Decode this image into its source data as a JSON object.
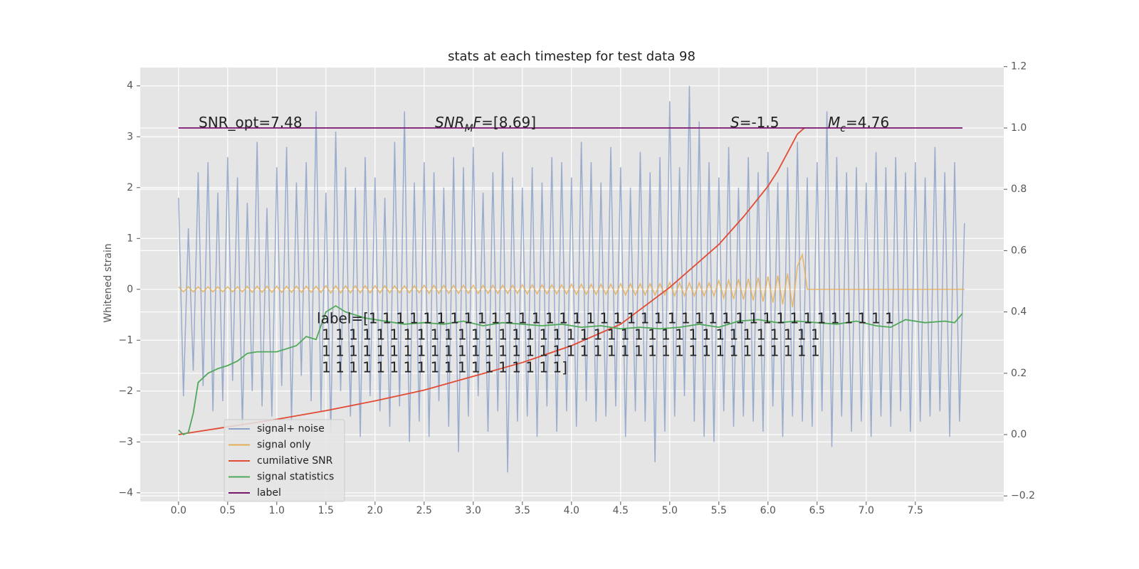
{
  "chart_data": {
    "type": "line",
    "title": "stats at each timestep for test data 98",
    "ylabel": "Whitened strain",
    "background": "#e5e5e5",
    "grid": true,
    "legend": "lower left",
    "xlim": [
      -0.39,
      8.4
    ],
    "ylim": [
      -4.17,
      4.36
    ],
    "y2lim": [
      -0.218,
      1.197
    ],
    "xticks": [
      {
        "value": 0,
        "label": "0.0"
      },
      0.5,
      {
        "value": 1,
        "label": "1.0"
      },
      1.5,
      {
        "value": 2,
        "label": "2.0"
      },
      2.5,
      {
        "value": 3,
        "label": "3.0"
      },
      3.5,
      {
        "value": 4,
        "label": "4.0"
      },
      4.5,
      {
        "value": 5,
        "label": "5.0"
      },
      5.5,
      {
        "value": 6,
        "label": "6.0"
      },
      6.5,
      {
        "value": 7,
        "label": "7.0"
      },
      7.5
    ],
    "yticks": [
      {
        "value": -4,
        "label": "−4"
      },
      {
        "value": -3,
        "label": "−3"
      },
      {
        "value": -2,
        "label": "−2"
      },
      {
        "value": -1,
        "label": "−1"
      },
      0,
      1,
      2,
      3,
      4
    ],
    "y2ticks": [
      {
        "value": -0.2,
        "label": "−0.2"
      },
      {
        "value": 0,
        "label": "0.0"
      },
      0.2,
      0.4,
      0.6,
      0.8,
      {
        "value": 1,
        "label": "1.0"
      },
      1.2
    ],
    "x": [
      0,
      0.05,
      0.1,
      0.15,
      0.2,
      0.25,
      0.3,
      0.35,
      0.4,
      0.45,
      0.5,
      0.55,
      0.6,
      0.65,
      0.7,
      0.75,
      0.8,
      0.85,
      0.9,
      0.95,
      1,
      1.05,
      1.1,
      1.15,
      1.2,
      1.25,
      1.3,
      1.35,
      1.4,
      1.45,
      1.5,
      1.55,
      1.6,
      1.65,
      1.7,
      1.75,
      1.8,
      1.85,
      1.9,
      1.95,
      2,
      2.05,
      2.1,
      2.15,
      2.2,
      2.25,
      2.3,
      2.35,
      2.4,
      2.45,
      2.5,
      2.55,
      2.6,
      2.65,
      2.7,
      2.75,
      2.8,
      2.85,
      2.9,
      2.95,
      3,
      3.05,
      3.1,
      3.15,
      3.2,
      3.25,
      3.3,
      3.35,
      3.4,
      3.45,
      3.5,
      3.55,
      3.6,
      3.65,
      3.7,
      3.75,
      3.8,
      3.85,
      3.9,
      3.95,
      4,
      4.05,
      4.1,
      4.15,
      4.2,
      4.25,
      4.3,
      4.35,
      4.4,
      4.45,
      4.5,
      4.55,
      4.6,
      4.65,
      4.7,
      4.75,
      4.8,
      4.85,
      4.9,
      4.95,
      5,
      5.05,
      5.1,
      5.15,
      5.2,
      5.25,
      5.3,
      5.35,
      5.4,
      5.45,
      5.5,
      5.55,
      5.6,
      5.65,
      5.7,
      5.75,
      5.8,
      5.85,
      5.9,
      5.95,
      6,
      6.05,
      6.1,
      6.15,
      6.2,
      6.25,
      6.3,
      6.35,
      6.4,
      6.45,
      6.5,
      6.55,
      6.6,
      6.65,
      6.7,
      6.75,
      6.8,
      6.85,
      6.9,
      6.95,
      7,
      7.05,
      7.1,
      7.15,
      7.2,
      7.25,
      7.3,
      7.35,
      7.4,
      7.45,
      7.5,
      7.55,
      7.6,
      7.65,
      7.7,
      7.75,
      7.8,
      7.85,
      7.9,
      7.95,
      8
    ],
    "series": [
      {
        "name": "signal+ noise",
        "color": "#8da2c9",
        "values": [
          1.8,
          -2.1,
          1.2,
          -1.6,
          2.3,
          -1.9,
          2.5,
          -2.4,
          1.9,
          -2.2,
          2.6,
          -1.8,
          2.2,
          -2.7,
          1.7,
          -2.0,
          2.9,
          -2.3,
          1.6,
          -2.5,
          2.4,
          -1.9,
          2.8,
          -2.6,
          2.1,
          -1.7,
          2.5,
          -2.2,
          3.5,
          -2.4,
          1.9,
          -2.8,
          3.1,
          -2.0,
          2.4,
          -2.5,
          2.0,
          -2.9,
          2.6,
          -2.1,
          2.2,
          -2.4,
          1.8,
          -2.7,
          2.9,
          -2.3,
          3.5,
          -3.0,
          2.1,
          -2.6,
          2.5,
          -2.9,
          2.3,
          -2.2,
          2.0,
          -2.7,
          2.6,
          -3.2,
          2.4,
          -2.5,
          2.8,
          -2.1,
          1.9,
          -2.8,
          2.3,
          -2.4,
          2.7,
          -3.6,
          2.2,
          -2.6,
          2.0,
          -2.5,
          2.4,
          -2.9,
          2.1,
          -2.3,
          2.6,
          -2.8,
          2.5,
          -2.4,
          2.2,
          -2.7,
          2.9,
          -2.2,
          2.5,
          -2.6,
          2.1,
          -2.5,
          2.8,
          -2.3,
          2.4,
          -2.9,
          2.0,
          -2.4,
          2.7,
          -2.6,
          2.3,
          -3.4,
          2.6,
          -2.8,
          3.7,
          -2.5,
          2.4,
          -2.1,
          4.0,
          -2.6,
          3.3,
          -2.9,
          2.5,
          -3.0,
          2.2,
          -2.4,
          2.8,
          -2.7,
          2.0,
          -2.5,
          2.6,
          -2.6,
          2.3,
          -2.8,
          2.7,
          -2.3,
          2.1,
          -2.9,
          2.4,
          -2.5,
          2.9,
          -2.6,
          2.2,
          -2.7,
          2.5,
          -2.4,
          3.5,
          -3.1,
          2.6,
          -2.5,
          2.3,
          -2.8,
          2.4,
          -2.6,
          2.1,
          -2.9,
          2.7,
          -2.5,
          2.4,
          -2.7,
          2.6,
          -2.4,
          2.3,
          -2.8,
          2.5,
          -2.6,
          2.2,
          -2.5,
          2.8,
          -2.4,
          2.3,
          -2.9,
          2.5,
          -2.6,
          1.3
        ]
      },
      {
        "name": "signal only",
        "color": "#e5ae55",
        "values": [
          0.05,
          -0.05,
          0.05,
          -0.05,
          0.05,
          -0.05,
          0.05,
          -0.05,
          0.05,
          -0.05,
          0.05,
          -0.05,
          0.05,
          -0.05,
          0.06,
          -0.06,
          0.06,
          -0.06,
          0.06,
          -0.06,
          0.06,
          -0.06,
          0.06,
          -0.06,
          0.06,
          -0.06,
          0.06,
          -0.06,
          0.06,
          -0.06,
          0.07,
          -0.07,
          0.07,
          -0.07,
          0.07,
          -0.07,
          0.07,
          -0.07,
          0.07,
          -0.07,
          0.07,
          -0.07,
          0.07,
          -0.07,
          0.07,
          -0.07,
          0.07,
          -0.07,
          0.07,
          -0.07,
          0.08,
          -0.08,
          0.08,
          -0.08,
          0.08,
          -0.08,
          0.08,
          -0.08,
          0.08,
          -0.08,
          0.08,
          -0.08,
          0.08,
          -0.08,
          0.08,
          -0.08,
          0.08,
          -0.08,
          0.08,
          -0.08,
          0.09,
          -0.09,
          0.09,
          -0.09,
          0.09,
          -0.09,
          0.09,
          -0.09,
          0.09,
          -0.09,
          0.1,
          -0.1,
          0.1,
          -0.1,
          0.1,
          -0.1,
          0.1,
          -0.1,
          0.1,
          -0.1,
          0.11,
          -0.11,
          0.11,
          -0.11,
          0.11,
          -0.11,
          0.11,
          -0.11,
          0.11,
          -0.11,
          0.13,
          -0.13,
          0.13,
          -0.13,
          0.13,
          -0.13,
          0.13,
          -0.13,
          0.13,
          -0.13,
          0.17,
          -0.17,
          0.18,
          -0.19,
          0.2,
          -0.2,
          0.21,
          -0.22,
          0.23,
          -0.24,
          0.25,
          -0.26,
          0.27,
          -0.29,
          0.31,
          -0.35,
          0.45,
          0.68,
          0,
          0,
          0,
          0,
          0,
          0,
          0,
          0,
          0,
          0,
          0,
          0,
          0,
          0,
          0,
          0,
          0,
          0,
          0,
          0,
          0,
          0,
          0,
          0,
          0,
          0,
          0,
          0,
          0,
          0,
          0,
          0,
          0
        ]
      },
      {
        "name": "cumilative SNR",
        "color": "#e24a33",
        "axis": "y2",
        "x": [
          0,
          0.5,
          1,
          1.5,
          2,
          2.5,
          3,
          3.5,
          4,
          4.5,
          5,
          5.5,
          5.75,
          6,
          6.1,
          6.2,
          6.3,
          6.37
        ],
        "values": [
          0,
          0.025,
          0.05,
          0.078,
          0.11,
          0.145,
          0.19,
          0.235,
          0.29,
          0.36,
          0.48,
          0.62,
          0.71,
          0.81,
          0.86,
          0.92,
          0.98,
          1.0
        ]
      },
      {
        "name": "signal statistics",
        "color": "#4fa85a",
        "axis": "y2",
        "x": [
          0,
          0.05,
          0.1,
          0.15,
          0.2,
          0.3,
          0.4,
          0.5,
          0.6,
          0.7,
          0.8,
          0.9,
          1.0,
          1.1,
          1.2,
          1.3,
          1.4,
          1.5,
          1.6,
          1.7,
          1.9,
          2.1,
          2.3,
          2.5,
          2.7,
          2.9,
          3.1,
          3.3,
          3.5,
          3.7,
          3.9,
          4.1,
          4.3,
          4.5,
          4.7,
          4.9,
          5.1,
          5.3,
          5.5,
          5.7,
          5.9,
          6.1,
          6.3,
          6.5,
          6.7,
          6.9,
          7.1,
          7.25,
          7.4,
          7.6,
          7.8,
          7.9,
          7.98
        ],
        "values": [
          0.015,
          0.0,
          0.007,
          0.07,
          0.17,
          0.2,
          0.215,
          0.225,
          0.24,
          0.265,
          0.27,
          0.27,
          0.27,
          0.28,
          0.29,
          0.32,
          0.31,
          0.4,
          0.42,
          0.4,
          0.38,
          0.37,
          0.36,
          0.365,
          0.36,
          0.37,
          0.355,
          0.365,
          0.36,
          0.355,
          0.36,
          0.35,
          0.355,
          0.345,
          0.35,
          0.345,
          0.35,
          0.36,
          0.35,
          0.37,
          0.375,
          0.365,
          0.37,
          0.365,
          0.36,
          0.37,
          0.355,
          0.35,
          0.375,
          0.365,
          0.37,
          0.365,
          0.395
        ]
      },
      {
        "name": "label",
        "color": "#7b1570",
        "axis": "y2",
        "x": [
          0,
          7.98
        ],
        "values": [
          1,
          1
        ]
      }
    ],
    "annotations": [
      [
        {
          "t": "SNR_opt=7.48"
        }
      ],
      [
        {
          "t": "SNR",
          "i": true
        },
        {
          "t": "M",
          "i": true,
          "sub": true
        },
        {
          "t": "F",
          "i": true
        },
        {
          "t": "=[8.69]"
        }
      ],
      [
        {
          "t": "S",
          "i": true
        },
        {
          "t": "=-1.5"
        }
      ],
      [
        {
          "t": "M",
          "i": true
        },
        {
          "t": "c",
          "i": true,
          "sub": true
        },
        {
          "t": "=4.76"
        }
      ]
    ],
    "label_text": [
      "label=[1 1 1 1 1 1 1 1 1 1 1 1 1 1 1 1 1 1 1 1 1 1 1 1 1 1 1 1 1 1 1 1 1 1 1 1 1 1 1",
      "1 1 1 1 1 1 1 1 1 1 1 1 1 1 1 1 1 1 1 1 1 1 1 1 1 1 1 1 1 1 1 1 1 1 1 1 1",
      "1 1 1 1 1 1 1 1 1 1 1 1 1 1 1 1 1 1 1 1 1 1 1 1 1 1 1 1 1 1 1 1 1 1 1 1 1",
      "1 1 1 1 1 1 1 1 1 1 1 1 1 1 1 1 1 1]"
    ]
  }
}
